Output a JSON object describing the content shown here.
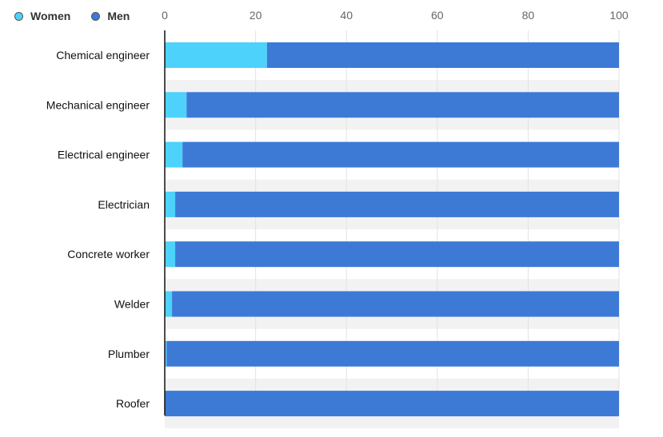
{
  "chart_data": {
    "type": "bar",
    "orientation": "horizontal",
    "stacked": true,
    "categories": [
      "Chemical engineer",
      "Mechanical engineer",
      "Electrical engineer",
      "Electrician",
      "Concrete worker",
      "Welder",
      "Plumber",
      "Roofer"
    ],
    "series": [
      {
        "name": "Women",
        "color": "#4dd2fb",
        "values": [
          22.5,
          4.8,
          3.9,
          2.3,
          2.3,
          1.6,
          0.4,
          0.0
        ]
      },
      {
        "name": "Men",
        "color": "#3c7ad6",
        "values": [
          77.5,
          95.2,
          96.1,
          97.7,
          97.7,
          98.4,
          99.6,
          100.0
        ]
      }
    ],
    "xlim": [
      0,
      100
    ],
    "x_ticks": [
      0,
      20,
      40,
      60,
      80,
      100
    ],
    "x_axis_position": "top",
    "grid": true,
    "legend_position": "top-left",
    "title": "",
    "xlabel": "",
    "ylabel": ""
  }
}
